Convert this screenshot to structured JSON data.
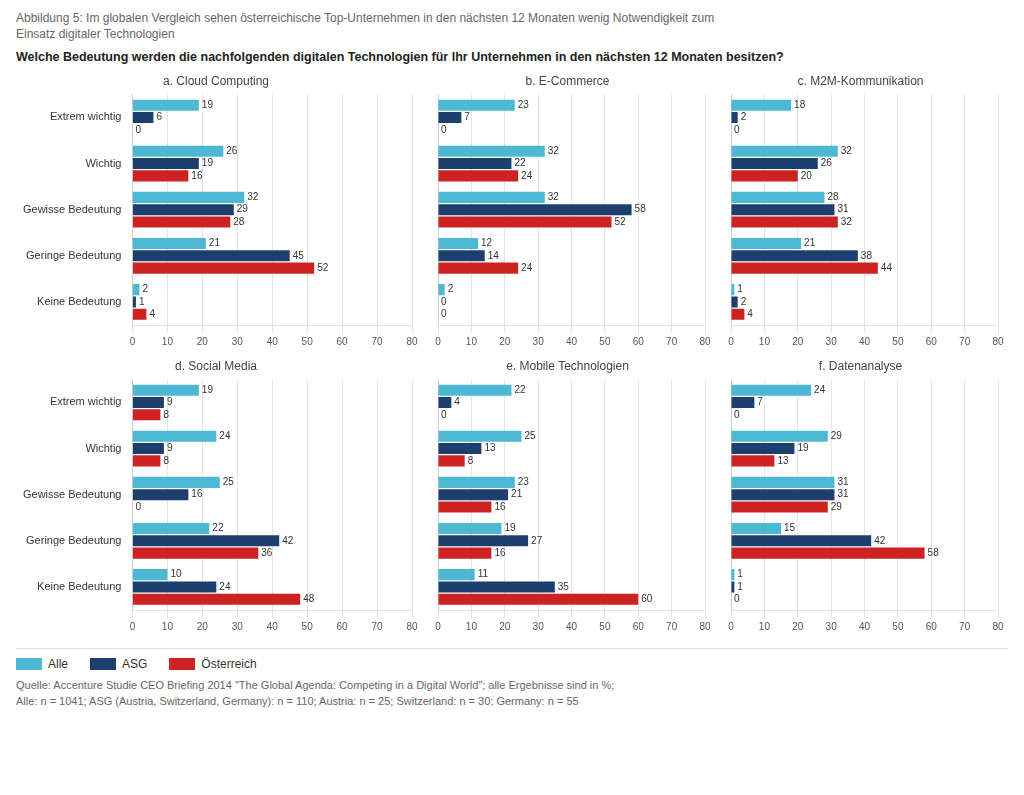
{
  "title": [
    "Abbildung 5: Im globalen Vergleich sehen österreichische Top-Unternehmen in den nächsten 12 Monaten wenig Notwendigkeit zum",
    "Einsatz digitaler Technologien"
  ],
  "subtitle": "Welche Bedeutung werden die nachfolgenden digitalen Technologien für Ihr Unternehmen in den nächsten 12 Monaten besitzen?",
  "annotations": [
    "Quelle: Accenture Studie CEO Briefing 2014 \"The Global Agenda: Competing in a Digital World\"; alle Ergebnisse sind in %;",
    "Alle: n = 1041; ASG (Austria, Switzerland, Germany): n = 110; Austria: n = 25; Switzerland: n = 30; Germany: n = 55"
  ],
  "legend": "bottom",
  "chart_data": [
    {
      "type": "bar",
      "orientation": "horizontal",
      "title": "a. Cloud Computing",
      "categories": [
        "Extrem wichtig",
        "Wichtig",
        "Gewisse Bedeutung",
        "Geringe Bedeutung",
        "Keine Bedeutung"
      ],
      "series": [
        {
          "name": "Alle",
          "color": "#4db8d4",
          "values": [
            19,
            26,
            32,
            21,
            2
          ]
        },
        {
          "name": "ASG",
          "color": "#1c3f6e",
          "values": [
            6,
            19,
            29,
            45,
            1
          ]
        },
        {
          "name": "Österreich",
          "color": "#cc2222",
          "values": [
            0,
            16,
            28,
            52,
            4
          ]
        }
      ],
      "xlim": [
        0,
        80
      ],
      "xticks": [
        0,
        10,
        20,
        30,
        40,
        50,
        60,
        70,
        80
      ],
      "grid": true,
      "data_labels": true
    },
    {
      "type": "bar",
      "orientation": "horizontal",
      "title": "b. E-Commerce",
      "categories": [
        "Extrem wichtig",
        "Wichtig",
        "Gewisse Bedeutung",
        "Geringe Bedeutung",
        "Keine Bedeutung"
      ],
      "series": [
        {
          "name": "Alle",
          "color": "#4db8d4",
          "values": [
            23,
            32,
            32,
            12,
            2
          ]
        },
        {
          "name": "ASG",
          "color": "#1c3f6e",
          "values": [
            7,
            22,
            58,
            14,
            0
          ]
        },
        {
          "name": "Österreich",
          "color": "#cc2222",
          "values": [
            0,
            24,
            52,
            24,
            0
          ]
        }
      ],
      "xlim": [
        0,
        80
      ],
      "xticks": [
        0,
        10,
        20,
        30,
        40,
        50,
        60,
        70,
        80
      ],
      "grid": true,
      "data_labels": true,
      "tick_labels": "x"
    },
    {
      "type": "bar",
      "orientation": "horizontal",
      "title": "c. M2M-Kommunikation",
      "categories": [
        "Extrem wichtig",
        "Wichtig",
        "Gewisse Bedeutung",
        "Geringe Bedeutung",
        "Keine Bedeutung"
      ],
      "series": [
        {
          "name": "Alle",
          "color": "#4db8d4",
          "values": [
            18,
            32,
            28,
            21,
            1
          ]
        },
        {
          "name": "ASG",
          "color": "#1c3f6e",
          "values": [
            2,
            26,
            31,
            38,
            2
          ]
        },
        {
          "name": "Österreich",
          "color": "#cc2222",
          "values": [
            0,
            20,
            32,
            44,
            4
          ]
        }
      ],
      "xlim": [
        0,
        80
      ],
      "xticks": [
        0,
        10,
        20,
        30,
        40,
        50,
        60,
        70,
        80
      ],
      "grid": true,
      "data_labels": true,
      "tick_labels": "x"
    },
    {
      "type": "bar",
      "orientation": "horizontal",
      "title": "d. Social Media",
      "categories": [
        "Extrem wichtig",
        "Wichtig",
        "Gewisse Bedeutung",
        "Geringe Bedeutung",
        "Keine Bedeutung"
      ],
      "series": [
        {
          "name": "Alle",
          "color": "#4db8d4",
          "values": [
            19,
            24,
            25,
            22,
            10
          ]
        },
        {
          "name": "ASG",
          "color": "#1c3f6e",
          "values": [
            9,
            9,
            16,
            42,
            24
          ]
        },
        {
          "name": "Österreich",
          "color": "#cc2222",
          "values": [
            8,
            8,
            0,
            36,
            48
          ]
        }
      ],
      "xlim": [
        0,
        80
      ],
      "xticks": [
        0,
        10,
        20,
        30,
        40,
        50,
        60,
        70,
        80
      ],
      "grid": true,
      "data_labels": true
    },
    {
      "type": "bar",
      "orientation": "horizontal",
      "title": "e. Mobile Technologien",
      "categories": [
        "Extrem wichtig",
        "Wichtig",
        "Gewisse Bedeutung",
        "Geringe Bedeutung",
        "Keine Bedeutung"
      ],
      "series": [
        {
          "name": "Alle",
          "color": "#4db8d4",
          "values": [
            22,
            25,
            23,
            19,
            11
          ]
        },
        {
          "name": "ASG",
          "color": "#1c3f6e",
          "values": [
            4,
            13,
            21,
            27,
            35
          ]
        },
        {
          "name": "Österreich",
          "color": "#cc2222",
          "values": [
            0,
            8,
            16,
            16,
            60
          ]
        }
      ],
      "xlim": [
        0,
        80
      ],
      "xticks": [
        0,
        10,
        20,
        30,
        40,
        50,
        60,
        70,
        80
      ],
      "grid": true,
      "data_labels": true,
      "tick_labels": "x"
    },
    {
      "type": "bar",
      "orientation": "horizontal",
      "title": "f. Datenanalyse",
      "categories": [
        "Extrem wichtig",
        "Wichtig",
        "Gewisse Bedeutung",
        "Geringe Bedeutung",
        "Keine Bedeutung"
      ],
      "series": [
        {
          "name": "Alle",
          "color": "#4db8d4",
          "values": [
            24,
            29,
            31,
            15,
            1
          ]
        },
        {
          "name": "ASG",
          "color": "#1c3f6e",
          "values": [
            7,
            19,
            31,
            42,
            1
          ]
        },
        {
          "name": "Österreich",
          "color": "#cc2222",
          "values": [
            0,
            13,
            29,
            58,
            0
          ]
        }
      ],
      "xlim": [
        0,
        80
      ],
      "xticks": [
        0,
        10,
        20,
        30,
        40,
        50,
        60,
        70,
        80
      ],
      "grid": true,
      "data_labels": true,
      "tick_labels": "x"
    }
  ]
}
